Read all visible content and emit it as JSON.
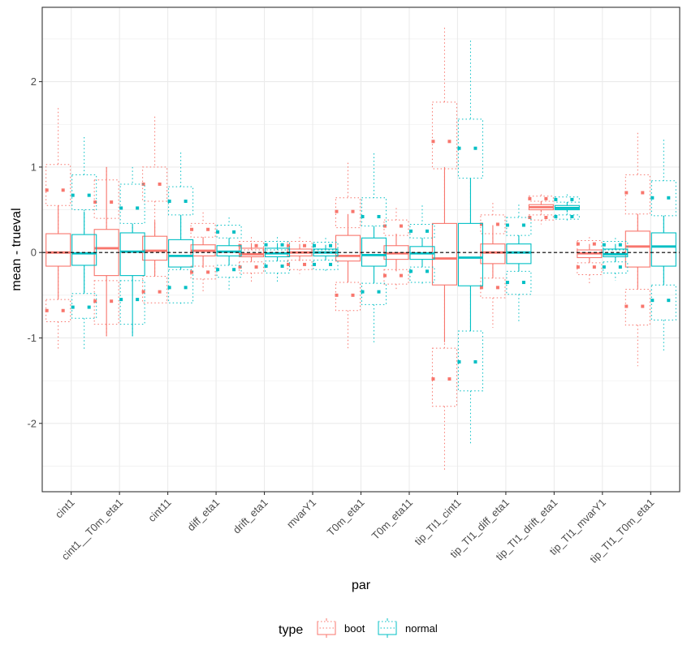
{
  "chart_data": {
    "type": "boxplot",
    "title": "",
    "xlabel": "par",
    "ylabel": "mean - trueval",
    "ylim": [
      -2.8,
      2.87
    ],
    "yticks": [
      -2,
      -1,
      0,
      1,
      2
    ],
    "ytick_labels": [
      "-2",
      "-1",
      "0",
      "1",
      "2"
    ],
    "grid": true,
    "reference_line": {
      "y": 0,
      "style": "dashed",
      "color": "#000000"
    },
    "categories": [
      "cint1",
      "cint1__T0m_eta1",
      "cint11",
      "diff_eta1",
      "drift_eta1",
      "mvarY1",
      "T0m_eta1",
      "T0m_eta11",
      "tip_TI1_cint1",
      "tip_TI1_diff_eta1",
      "tip_TI1_drift_eta1",
      "tip_TI1_mvarY1",
      "tip_TI1_T0m_eta1"
    ],
    "legend": {
      "title": "type",
      "position": "bottom",
      "entries": [
        {
          "label": "boot",
          "color": "#F8766D"
        },
        {
          "label": "normal",
          "color": "#00BFC4"
        }
      ]
    },
    "series": [
      {
        "name": "boot",
        "color": "#F8766D",
        "main": [
          {
            "q1": -0.16,
            "median": 0.0,
            "q3": 0.22,
            "lo": -0.55,
            "hi": 0.55
          },
          {
            "q1": -0.27,
            "median": 0.05,
            "q3": 0.27,
            "lo": -0.98,
            "hi": 1.0
          },
          {
            "q1": -0.09,
            "median": 0.02,
            "q3": 0.19,
            "lo": -0.28,
            "hi": 0.37
          },
          {
            "q1": -0.04,
            "median": 0.02,
            "q3": 0.09,
            "lo": -0.18,
            "hi": 0.18
          },
          {
            "q1": -0.05,
            "median": -0.02,
            "q3": 0.05,
            "lo": -0.11,
            "hi": 0.11
          },
          {
            "q1": -0.04,
            "median": 0.0,
            "q3": 0.04,
            "lo": -0.1,
            "hi": 0.1
          },
          {
            "q1": -0.1,
            "median": -0.04,
            "q3": 0.2,
            "lo": -0.35,
            "hi": 0.45
          },
          {
            "q1": -0.08,
            "median": -0.01,
            "q3": 0.08,
            "lo": -0.22,
            "hi": 0.22
          },
          {
            "q1": -0.38,
            "median": -0.07,
            "q3": 0.34,
            "lo": -1.05,
            "hi": 1.0
          },
          {
            "q1": -0.13,
            "median": 0.0,
            "q3": 0.1,
            "lo": -0.3,
            "hi": 0.32
          },
          {
            "q1": 0.5,
            "median": 0.53,
            "q3": 0.56,
            "lo": 0.47,
            "hi": 0.6
          },
          {
            "q1": -0.06,
            "median": -0.01,
            "q3": 0.03,
            "lo": -0.12,
            "hi": 0.1
          },
          {
            "q1": -0.17,
            "median": 0.07,
            "q3": 0.25,
            "lo": -0.43,
            "hi": 0.45
          }
        ],
        "upper": [
          {
            "bottom": 0.55,
            "top": 1.03,
            "point": 0.73,
            "whisker": 1.69
          },
          {
            "bottom": 0.4,
            "top": 0.85,
            "point": 0.59,
            "whisker": 1.0
          },
          {
            "bottom": 0.6,
            "top": 1.0,
            "point": 0.8,
            "whisker": 1.59
          },
          {
            "bottom": 0.18,
            "top": 0.34,
            "point": 0.27,
            "whisker": 0.47
          },
          {
            "bottom": 0.03,
            "top": 0.13,
            "point": 0.08,
            "whisker": 0.18
          },
          {
            "bottom": 0.04,
            "top": 0.13,
            "point": 0.08,
            "whisker": 0.18
          },
          {
            "bottom": 0.29,
            "top": 0.64,
            "point": 0.48,
            "whisker": 1.05
          },
          {
            "bottom": 0.2,
            "top": 0.38,
            "point": 0.31,
            "whisker": 0.52
          },
          {
            "bottom": 0.98,
            "top": 1.76,
            "point": 1.3,
            "whisker": 2.63
          },
          {
            "bottom": 0.22,
            "top": 0.44,
            "point": 0.33,
            "whisker": 0.58
          },
          {
            "bottom": 0.6,
            "top": 0.66,
            "point": 0.63,
            "whisker": 0.68
          },
          {
            "bottom": 0.03,
            "top": 0.14,
            "point": 0.1,
            "whisker": 0.18
          },
          {
            "bottom": 0.45,
            "top": 0.91,
            "point": 0.7,
            "whisker": 1.4
          }
        ],
        "lower": [
          {
            "top": -0.55,
            "bottom": -0.81,
            "point": -0.68,
            "whisker": -1.15
          },
          {
            "top": -0.33,
            "bottom": -0.84,
            "point": -0.57,
            "whisker": -0.98
          },
          {
            "top": -0.28,
            "bottom": -0.59,
            "point": -0.46,
            "whisker": -0.59
          },
          {
            "top": -0.16,
            "bottom": -0.31,
            "point": -0.23,
            "whisker": -0.47
          },
          {
            "top": -0.11,
            "bottom": -0.24,
            "point": -0.17,
            "whisker": -0.34
          },
          {
            "top": -0.09,
            "bottom": -0.2,
            "point": -0.14,
            "whisker": -0.25
          },
          {
            "top": -0.35,
            "bottom": -0.68,
            "point": -0.5,
            "whisker": -1.12
          },
          {
            "top": -0.2,
            "bottom": -0.37,
            "point": -0.27,
            "whisker": -0.44
          },
          {
            "top": -1.12,
            "bottom": -1.8,
            "point": -1.48,
            "whisker": -2.56
          },
          {
            "top": -0.3,
            "bottom": -0.53,
            "point": -0.41,
            "whisker": -0.88
          },
          {
            "top": 0.44,
            "bottom": 0.38,
            "point": 0.41,
            "whisker": 0.33
          },
          {
            "top": -0.12,
            "bottom": -0.26,
            "point": -0.17,
            "whisker": -0.36
          },
          {
            "top": -0.43,
            "bottom": -0.85,
            "point": -0.63,
            "whisker": -1.33
          }
        ]
      },
      {
        "name": "normal",
        "color": "#00BFC4",
        "main": [
          {
            "q1": -0.15,
            "median": -0.01,
            "q3": 0.21,
            "lo": -0.48,
            "hi": 0.48
          },
          {
            "q1": -0.27,
            "median": 0.01,
            "q3": 0.23,
            "lo": -0.98,
            "hi": 0.33
          },
          {
            "q1": -0.17,
            "median": -0.04,
            "q3": 0.15,
            "lo": -0.2,
            "hi": 0.44
          },
          {
            "q1": -0.04,
            "median": 0.01,
            "q3": 0.08,
            "lo": -0.15,
            "hi": 0.17
          },
          {
            "q1": -0.05,
            "median": -0.01,
            "q3": 0.05,
            "lo": -0.1,
            "hi": 0.11
          },
          {
            "q1": -0.04,
            "median": 0.0,
            "q3": 0.04,
            "lo": -0.09,
            "hi": 0.09
          },
          {
            "q1": -0.16,
            "median": -0.03,
            "q3": 0.17,
            "lo": -0.36,
            "hi": 0.31
          },
          {
            "q1": -0.08,
            "median": -0.01,
            "q3": 0.07,
            "lo": -0.17,
            "hi": 0.17
          },
          {
            "q1": -0.39,
            "median": -0.06,
            "q3": 0.34,
            "lo": -0.92,
            "hi": 0.87
          },
          {
            "q1": -0.13,
            "median": 0.0,
            "q3": 0.1,
            "lo": -0.22,
            "hi": 0.2
          },
          {
            "q1": 0.5,
            "median": 0.52,
            "q3": 0.55,
            "lo": 0.47,
            "hi": 0.59
          },
          {
            "q1": -0.05,
            "median": -0.02,
            "q3": 0.04,
            "lo": -0.11,
            "hi": 0.1
          },
          {
            "q1": -0.16,
            "median": 0.07,
            "q3": 0.23,
            "lo": -0.38,
            "hi": 0.43
          }
        ],
        "upper": [
          {
            "bottom": 0.5,
            "top": 0.91,
            "point": 0.67,
            "whisker": 1.35
          },
          {
            "bottom": 0.34,
            "top": 0.8,
            "point": 0.52,
            "whisker": 1.0
          },
          {
            "bottom": 0.44,
            "top": 0.77,
            "point": 0.6,
            "whisker": 1.17
          },
          {
            "bottom": 0.17,
            "top": 0.32,
            "point": 0.24,
            "whisker": 0.41
          },
          {
            "bottom": 0.03,
            "top": 0.13,
            "point": 0.09,
            "whisker": 0.18
          },
          {
            "bottom": 0.03,
            "top": 0.12,
            "point": 0.08,
            "whisker": 0.17
          },
          {
            "bottom": 0.31,
            "top": 0.64,
            "point": 0.42,
            "whisker": 1.16
          },
          {
            "bottom": 0.17,
            "top": 0.33,
            "point": 0.25,
            "whisker": 0.55
          },
          {
            "bottom": 0.87,
            "top": 1.56,
            "point": 1.22,
            "whisker": 2.48
          },
          {
            "bottom": 0.2,
            "top": 0.41,
            "point": 0.32,
            "whisker": 0.56
          },
          {
            "bottom": 0.59,
            "top": 0.65,
            "point": 0.62,
            "whisker": 0.68
          },
          {
            "bottom": 0.03,
            "top": 0.13,
            "point": 0.09,
            "whisker": 0.17
          },
          {
            "bottom": 0.43,
            "top": 0.84,
            "point": 0.64,
            "whisker": 1.32
          }
        ],
        "lower": [
          {
            "top": -0.48,
            "bottom": -0.77,
            "point": -0.64,
            "whisker": -1.15
          },
          {
            "top": -0.33,
            "bottom": -0.84,
            "point": -0.55,
            "whisker": -0.98
          },
          {
            "top": -0.2,
            "bottom": -0.59,
            "point": -0.41,
            "whisker": -0.6
          },
          {
            "top": -0.15,
            "bottom": -0.29,
            "point": -0.2,
            "whisker": -0.44
          },
          {
            "top": -0.1,
            "bottom": -0.24,
            "point": -0.16,
            "whisker": -0.34
          },
          {
            "top": -0.09,
            "bottom": -0.2,
            "point": -0.14,
            "whisker": -0.23
          },
          {
            "top": -0.36,
            "bottom": -0.61,
            "point": -0.46,
            "whisker": -1.05
          },
          {
            "top": -0.17,
            "bottom": -0.35,
            "point": -0.22,
            "whisker": -0.39
          },
          {
            "top": -0.92,
            "bottom": -1.62,
            "point": -1.28,
            "whisker": -2.26
          },
          {
            "top": -0.22,
            "bottom": -0.49,
            "point": -0.35,
            "whisker": -0.83
          },
          {
            "top": 0.44,
            "bottom": 0.39,
            "point": 0.42,
            "whisker": 0.35
          },
          {
            "top": -0.11,
            "bottom": -0.24,
            "point": -0.17,
            "whisker": -0.33
          },
          {
            "top": -0.38,
            "bottom": -0.79,
            "point": -0.56,
            "whisker": -1.16
          }
        ]
      }
    ]
  }
}
